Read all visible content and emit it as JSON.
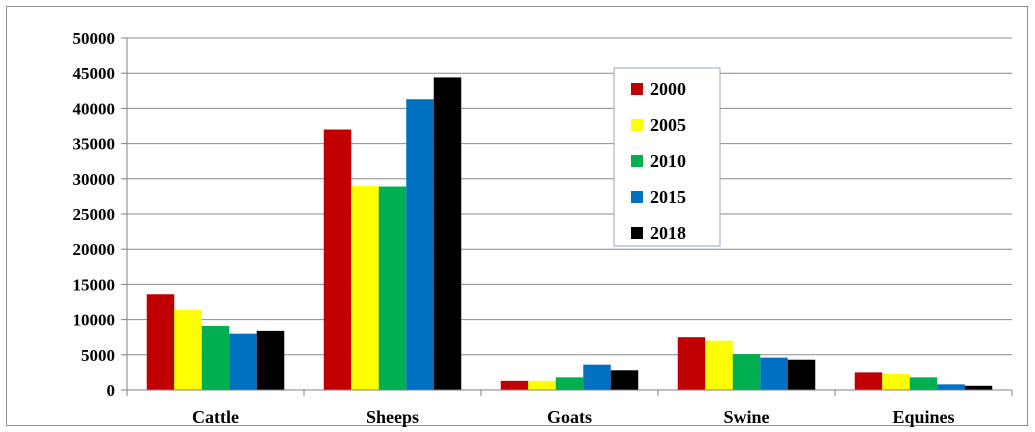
{
  "chart_data": {
    "type": "bar",
    "title": "",
    "xlabel": "",
    "ylabel": "",
    "ylim": [
      0,
      50000
    ],
    "yticks": [
      0,
      5000,
      10000,
      15000,
      20000,
      25000,
      30000,
      35000,
      40000,
      45000,
      50000
    ],
    "grid": true,
    "legend_position": "top-center",
    "categories": [
      "Cattle",
      "Sheeps",
      "Goats",
      "Swine",
      "Equines"
    ],
    "series": [
      {
        "name": "2000",
        "color": "#C00000",
        "values": [
          13600,
          37000,
          1300,
          7500,
          2500
        ]
      },
      {
        "name": "2005",
        "color": "#FFFF00",
        "values": [
          11400,
          29000,
          1300,
          7000,
          2300
        ]
      },
      {
        "name": "2010",
        "color": "#00B050",
        "values": [
          9100,
          28900,
          1800,
          5100,
          1800
        ]
      },
      {
        "name": "2015",
        "color": "#0070C0",
        "values": [
          8000,
          41300,
          3600,
          4600,
          800
        ]
      },
      {
        "name": "2018",
        "color": "#000000",
        "values": [
          8400,
          44400,
          2800,
          4300,
          600
        ]
      }
    ]
  }
}
